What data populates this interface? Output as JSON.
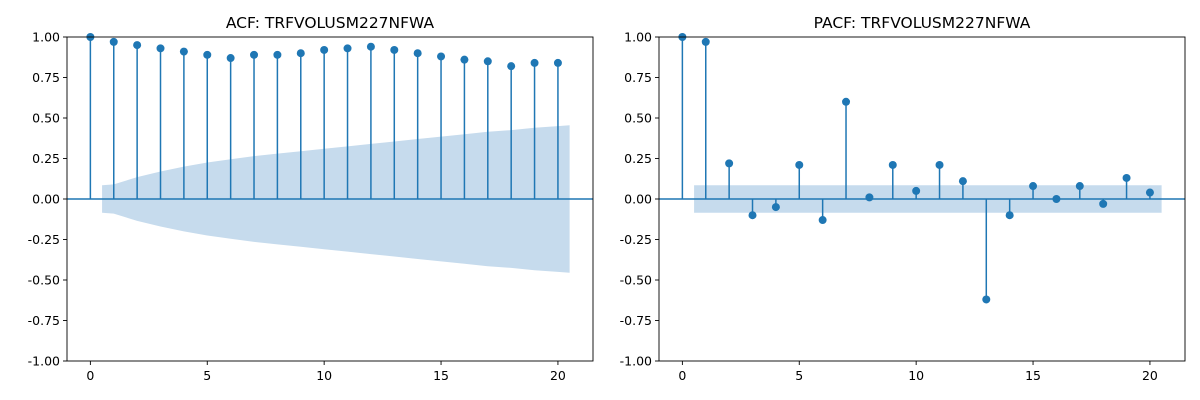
{
  "colors": {
    "accent": "#1f77b4",
    "confidence_band": "#c6dbed",
    "axis": "#000000",
    "background": "#ffffff"
  },
  "chart_data": [
    {
      "type": "stem",
      "title": "ACF: TRFVOLUSM227NFWA",
      "xlabel": "",
      "ylabel": "",
      "xlim": [
        -1,
        21.5
      ],
      "ylim": [
        -1,
        1
      ],
      "x_ticks": [
        0,
        5,
        10,
        15,
        20
      ],
      "y_ticks": [
        -1.0,
        -0.75,
        -0.5,
        -0.25,
        0.0,
        0.25,
        0.5,
        0.75,
        1.0
      ],
      "lags": [
        0,
        1,
        2,
        3,
        4,
        5,
        6,
        7,
        8,
        9,
        10,
        11,
        12,
        13,
        14,
        15,
        16,
        17,
        18,
        19,
        20
      ],
      "values": [
        1.0,
        0.97,
        0.95,
        0.93,
        0.91,
        0.89,
        0.87,
        0.89,
        0.89,
        0.9,
        0.92,
        0.93,
        0.94,
        0.92,
        0.9,
        0.88,
        0.86,
        0.85,
        0.82,
        0.84,
        0.84
      ],
      "confidence_band": {
        "lags": [
          0.5,
          1,
          2,
          3,
          4,
          5,
          6,
          7,
          8,
          9,
          10,
          11,
          12,
          13,
          14,
          15,
          16,
          17,
          18,
          19,
          20,
          20.5
        ],
        "upper": [
          0.085,
          0.09,
          0.135,
          0.17,
          0.2,
          0.225,
          0.245,
          0.265,
          0.28,
          0.295,
          0.31,
          0.325,
          0.34,
          0.355,
          0.37,
          0.385,
          0.4,
          0.415,
          0.425,
          0.44,
          0.45,
          0.455
        ],
        "lower": [
          -0.085,
          -0.09,
          -0.135,
          -0.17,
          -0.2,
          -0.225,
          -0.245,
          -0.265,
          -0.28,
          -0.295,
          -0.31,
          -0.325,
          -0.34,
          -0.355,
          -0.37,
          -0.385,
          -0.4,
          -0.415,
          -0.425,
          -0.44,
          -0.45,
          -0.455
        ]
      },
      "grid": false
    },
    {
      "type": "stem",
      "title": "PACF: TRFVOLUSM227NFWA",
      "xlabel": "",
      "ylabel": "",
      "xlim": [
        -1,
        21.5
      ],
      "ylim": [
        -1,
        1
      ],
      "x_ticks": [
        0,
        5,
        10,
        15,
        20
      ],
      "y_ticks": [
        -1.0,
        -0.75,
        -0.5,
        -0.25,
        0.0,
        0.25,
        0.5,
        0.75,
        1.0
      ],
      "lags": [
        0,
        1,
        2,
        3,
        4,
        5,
        6,
        7,
        8,
        9,
        10,
        11,
        12,
        13,
        14,
        15,
        16,
        17,
        18,
        19,
        20
      ],
      "values": [
        1.0,
        0.97,
        0.22,
        -0.1,
        -0.05,
        0.21,
        -0.13,
        0.6,
        0.01,
        0.21,
        0.05,
        0.21,
        0.11,
        -0.62,
        -0.1,
        0.08,
        0.0,
        0.08,
        -0.03,
        0.13,
        0.04
      ],
      "confidence_band": {
        "lags": [
          0.5,
          20.5
        ],
        "upper": [
          0.085,
          0.085
        ],
        "lower": [
          -0.085,
          -0.085
        ]
      },
      "grid": false
    }
  ]
}
